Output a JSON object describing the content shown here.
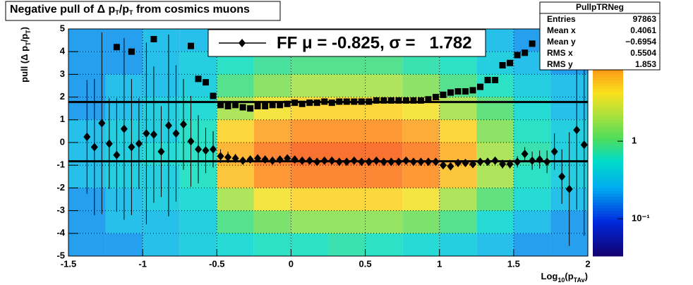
{
  "chart_data": {
    "type": "profile2d",
    "title": [
      "Negative pull of Δ p",
      "T",
      "/p",
      "T",
      " from cosmics muons"
    ],
    "x_label": [
      "Log",
      "10",
      "(p",
      "TAv",
      ")"
    ],
    "y_label": [
      "pull (Δ p",
      "T",
      "/p",
      "T",
      ")"
    ],
    "xlim": [
      -1.5,
      2
    ],
    "ylim": [
      -5,
      5
    ],
    "xticks": [
      -1.5,
      -1,
      -0.5,
      0,
      0.5,
      1,
      1.5,
      2
    ],
    "yticks": [
      -5,
      -4,
      -3,
      -2,
      -1,
      0,
      1,
      2,
      3,
      4,
      5
    ],
    "grid": true,
    "z_x_edges": [
      -1.5,
      -1.25,
      -1,
      -0.75,
      -0.5,
      -0.25,
      0,
      0.25,
      0.5,
      0.75,
      1,
      1.25,
      1.5,
      1.75,
      2
    ],
    "z_y_edges": [
      -5,
      -4,
      -3,
      -2,
      -1,
      0,
      1,
      2,
      3,
      4,
      5
    ],
    "z": [
      [
        0.2,
        0.2,
        0.3,
        0.4,
        0.5,
        0.6,
        0.6,
        0.7,
        0.6,
        0.5,
        0.4,
        0.3,
        0.2,
        0.2
      ],
      [
        0.2,
        0.3,
        0.3,
        0.4,
        0.9,
        1.3,
        1.6,
        1.6,
        1.6,
        1.3,
        0.9,
        0.5,
        0.3,
        0.2
      ],
      [
        0.2,
        0.3,
        0.4,
        0.5,
        2,
        4,
        5,
        5,
        5,
        4,
        2,
        1,
        0.5,
        0.3
      ],
      [
        0.3,
        0.4,
        0.4,
        0.6,
        6,
        10,
        12,
        12,
        12,
        10,
        6,
        2,
        0.6,
        0.4
      ],
      [
        0.3,
        0.4,
        0.5,
        0.6,
        7,
        12,
        15,
        15,
        15,
        12,
        7,
        2,
        0.7,
        0.4
      ],
      [
        0.3,
        0.4,
        0.4,
        0.6,
        5,
        8,
        10,
        10,
        10,
        8,
        5,
        1.5,
        0.6,
        0.4
      ],
      [
        0.2,
        0.3,
        0.4,
        0.5,
        2,
        4,
        5,
        5,
        5,
        4,
        2,
        1,
        0.5,
        0.3
      ],
      [
        0.2,
        0.3,
        0.3,
        0.4,
        0.9,
        1.5,
        2,
        2,
        2,
        1.5,
        0.9,
        0.6,
        0.4,
        0.3
      ],
      [
        0.2,
        0.2,
        0.3,
        0.4,
        0.6,
        0.8,
        0.9,
        0.9,
        0.9,
        0.7,
        0.6,
        0.4,
        0.3,
        0.2
      ],
      [
        0.2,
        0.2,
        0.3,
        0.3,
        0.5,
        0.6,
        0.6,
        0.6,
        0.6,
        0.5,
        0.4,
        0.3,
        0.2,
        0.2
      ]
    ],
    "zlim": [
      0.033,
      28
    ],
    "zticks": [
      1,
      {
        "value": 0.1,
        "label": "10⁻¹"
      }
    ],
    "x": [
      -1.375,
      -1.325,
      -1.275,
      -1.225,
      -1.175,
      -1.125,
      -1.075,
      -1.025,
      -0.975,
      -0.925,
      -0.875,
      -0.825,
      -0.775,
      -0.725,
      -0.675,
      -0.625,
      -0.575,
      -0.525,
      -0.475,
      -0.425,
      -0.375,
      -0.325,
      -0.275,
      -0.225,
      -0.175,
      -0.125,
      -0.075,
      -0.025,
      0.025,
      0.075,
      0.125,
      0.175,
      0.225,
      0.275,
      0.325,
      0.375,
      0.425,
      0.475,
      0.525,
      0.575,
      0.625,
      0.675,
      0.725,
      0.775,
      0.825,
      0.875,
      0.925,
      0.975,
      1.025,
      1.075,
      1.125,
      1.175,
      1.225,
      1.275,
      1.325,
      1.375,
      1.425,
      1.475,
      1.525,
      1.575,
      1.625,
      1.675,
      1.725,
      1.775,
      1.825,
      1.875,
      1.925,
      1.975
    ],
    "series": [
      {
        "name": "mean",
        "color": "#000000",
        "marker": "diamond",
        "values": [
          0.25,
          -0.2,
          0.85,
          -0.05,
          -0.55,
          0.6,
          -0.2,
          -0.05,
          0.4,
          0.35,
          -0.4,
          0.75,
          0.4,
          0.8,
          0.05,
          -0.3,
          -0.35,
          -0.3,
          -0.6,
          -0.65,
          -0.7,
          -0.8,
          -0.75,
          -0.7,
          -0.75,
          -0.8,
          -0.75,
          -0.7,
          -0.75,
          -0.8,
          -0.8,
          -0.85,
          -0.8,
          -0.8,
          -0.85,
          -0.85,
          -0.8,
          -0.85,
          -0.85,
          -0.8,
          -0.85,
          -0.85,
          -0.85,
          -0.8,
          -0.85,
          -0.85,
          -0.85,
          -0.85,
          -1.0,
          -1.05,
          -0.9,
          -0.9,
          -0.95,
          -0.85,
          -0.85,
          -0.8,
          -0.95,
          -0.95,
          -0.85,
          -0.5,
          -0.8,
          -0.75,
          -0.85,
          -0.4,
          -1.5,
          -2.05,
          0.55,
          -0.1
        ],
        "errors": [
          2.5,
          3,
          4,
          2,
          2.5,
          4,
          3,
          2,
          4,
          3,
          2,
          4,
          3,
          2,
          2,
          1.5,
          1,
          0.8,
          0.3,
          0.25,
          0.2,
          0.15,
          0.12,
          0.1,
          0.08,
          0.07,
          0.06,
          0.05,
          0.05,
          0.05,
          0.05,
          0.05,
          0.05,
          0.05,
          0.05,
          0.05,
          0.05,
          0.05,
          0.05,
          0.05,
          0.05,
          0.05,
          0.05,
          0.06,
          0.06,
          0.07,
          0.08,
          0.08,
          0.1,
          0.1,
          0.1,
          0.12,
          0.12,
          0.12,
          0.15,
          0.15,
          0.2,
          0.2,
          0.25,
          0.3,
          0.4,
          0.4,
          0.5,
          0.8,
          1.2,
          2.5,
          3.5,
          4
        ]
      },
      {
        "name": "rms",
        "color": "#000000",
        "marker": "square",
        "values": [
          null,
          null,
          null,
          null,
          4.2,
          null,
          4.0,
          null,
          null,
          4.55,
          null,
          null,
          null,
          null,
          4.25,
          2.8,
          2.65,
          2.05,
          1.65,
          1.6,
          1.65,
          1.55,
          1.5,
          1.6,
          1.6,
          1.65,
          1.65,
          1.7,
          1.75,
          1.7,
          1.75,
          1.75,
          1.8,
          1.75,
          1.8,
          1.8,
          1.8,
          1.8,
          1.8,
          1.85,
          1.85,
          1.85,
          1.85,
          1.85,
          1.85,
          1.85,
          1.9,
          2.0,
          2.1,
          2.2,
          2.25,
          2.25,
          2.3,
          2.45,
          2.75,
          2.75,
          3.4,
          3.5,
          3.85,
          3.95,
          4.35,
          null,
          4.8,
          null,
          null,
          null,
          null,
          null
        ]
      }
    ],
    "fit_lines": [
      -0.825,
      1.782
    ],
    "legend": "FF μ = -0.825, σ =   1.782",
    "stats": {
      "title": "PullpTRNeg",
      "rows": [
        [
          "Entries",
          "97863"
        ],
        [
          "Mean x",
          "0.4061"
        ],
        [
          "Mean y",
          "−0.6954"
        ],
        [
          "RMS x",
          "0.5504"
        ],
        [
          "RMS y",
          "1.853"
        ]
      ]
    }
  }
}
